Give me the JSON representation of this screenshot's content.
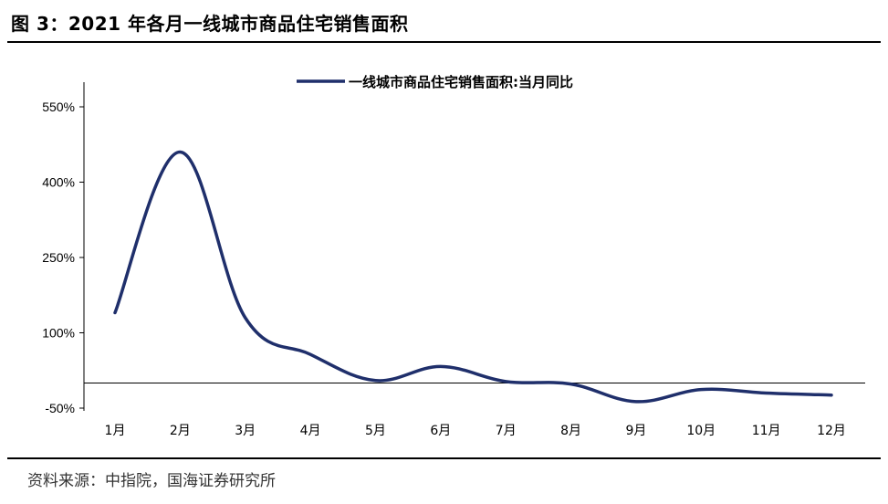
{
  "figure_title": "图 3：2021 年各月一线城市商品住宅销售面积",
  "source_note": "资料来源：中指院，国海证券研究所",
  "chart_data": {
    "type": "line",
    "title": "",
    "xlabel": "",
    "ylabel": "",
    "categories": [
      "1月",
      "2月",
      "3月",
      "4月",
      "5月",
      "6月",
      "7月",
      "8月",
      "9月",
      "10月",
      "11月",
      "12月"
    ],
    "series": [
      {
        "name": "一线城市商品住宅销售面积:当月同比",
        "color": "#1f2f6b",
        "values": [
          140,
          460,
          130,
          57,
          5,
          33,
          3,
          -2,
          -37,
          -13,
          -20,
          -24
        ]
      }
    ],
    "ylim": [
      -50,
      550
    ],
    "yticks": [
      550,
      400,
      250,
      100,
      -50
    ],
    "ytick_labels": [
      "550%",
      "400%",
      "250%",
      "100%",
      "-50%"
    ],
    "zero_line": true,
    "legend_position": "top-center",
    "grid": false
  }
}
